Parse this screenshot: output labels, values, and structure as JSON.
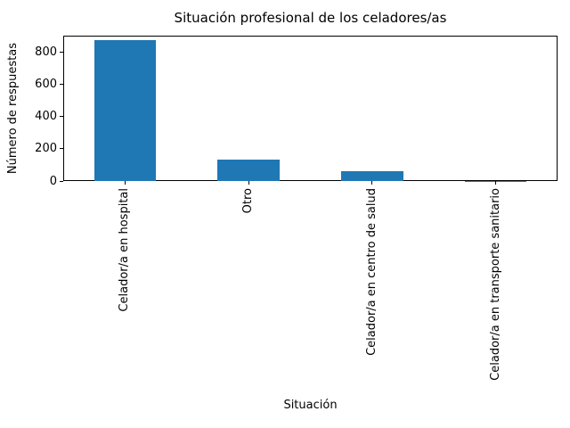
{
  "chart_data": {
    "type": "bar",
    "title": "Situación profesional de los celadores/as",
    "xlabel": "Situación",
    "ylabel": "Número de respuestas",
    "categories": [
      "Celador/a en hospital",
      "Otro",
      "Celador/a en centro de salud",
      "Celador/a en transporte sanitario"
    ],
    "values": [
      870,
      133,
      60,
      2
    ],
    "ylim": [
      0,
      900
    ],
    "yticks": [
      0,
      200,
      400,
      600,
      800
    ],
    "bar_color": "#1f77b4",
    "legend": "none",
    "grid": "off",
    "tick_label_rotation_deg": 90
  }
}
